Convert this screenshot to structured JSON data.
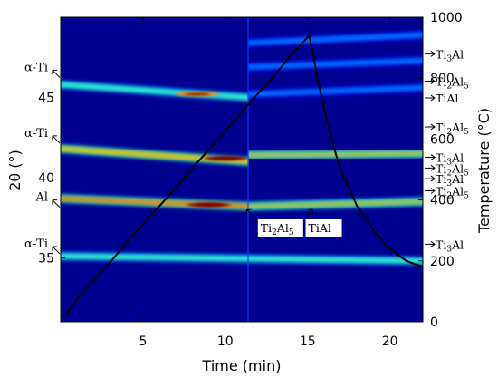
{
  "chart_data": {
    "type": "heatmap",
    "title": "",
    "xlabel": "Time (min)",
    "ylabel_left": "2θ (°)",
    "ylabel_right": "Temperature (°C)",
    "xlim": [
      0,
      22
    ],
    "ylim_left": [
      31.0,
      50.0
    ],
    "ylim_right": [
      0,
      1000
    ],
    "x_ticks": [
      5,
      10,
      15,
      20
    ],
    "y_ticks_left": [
      35,
      40,
      45
    ],
    "y_ticks_right": [
      0,
      200,
      400,
      600,
      800,
      1000
    ],
    "colormap": [
      "#00008f",
      "#0000ff",
      "#0080ff",
      "#00ffff",
      "#80ff80",
      "#ffff00",
      "#ff8000",
      "#ff0000",
      "#800000"
    ],
    "peak_bands": [
      {
        "name": "α-Ti (10-11)",
        "segments": [
          {
            "x0": 0,
            "x1": 11.4,
            "y0": 45.8,
            "y1": 45.0,
            "intensity": 0.55
          }
        ]
      },
      {
        "name": "α-Ti (002)",
        "segments": [
          {
            "x0": 0,
            "x1": 11.4,
            "y0": 41.8,
            "y1": 41.0,
            "intensity": 0.8
          }
        ]
      },
      {
        "name": "Al (111)",
        "segments": [
          {
            "x0": 0,
            "x1": 11.4,
            "y0": 38.7,
            "y1": 38.2,
            "intensity": 0.85
          }
        ]
      },
      {
        "name": "α-Ti (100)",
        "segments": [
          {
            "x0": 0,
            "x1": 22,
            "y0": 35.1,
            "y1": 34.8,
            "intensity": 0.5
          }
        ]
      },
      {
        "name": "Ti3Al (top)",
        "segments": [
          {
            "x0": 11.4,
            "x1": 22,
            "y0": 48.4,
            "y1": 48.9,
            "intensity": 0.3
          }
        ]
      },
      {
        "name": "Ti2Al5 (upper)",
        "segments": [
          {
            "x0": 11.4,
            "x1": 22,
            "y0": 46.9,
            "y1": 47.3,
            "intensity": 0.3
          }
        ]
      },
      {
        "name": "TiAl (upper)",
        "segments": [
          {
            "x0": 11.4,
            "x1": 22,
            "y0": 45.2,
            "y1": 45.6,
            "intensity": 0.25
          }
        ]
      },
      {
        "name": "Ti3Al / Ti2Al5 (mid)",
        "segments": [
          {
            "x0": 11.4,
            "x1": 22,
            "y0": 41.4,
            "y1": 41.5,
            "intensity": 0.7
          }
        ]
      },
      {
        "name": "Ti3Al / Ti2Al5 (low)",
        "segments": [
          {
            "x0": 11.4,
            "x1": 22,
            "y0": 38.2,
            "y1": 38.5,
            "intensity": 0.7
          }
        ]
      }
    ],
    "hot_spots": [
      {
        "x": 8.3,
        "y": 45.2,
        "intensity": 0.75
      },
      {
        "x": 10.0,
        "y": 41.2,
        "intensity": 1.0
      },
      {
        "x": 9.0,
        "y": 38.3,
        "intensity": 1.0
      }
    ],
    "temperature_series": {
      "x": [
        0,
        0.3,
        0.6,
        1,
        2,
        3,
        4,
        5,
        6,
        7,
        8,
        9,
        10,
        11,
        12,
        13,
        14,
        15.1,
        15.3,
        15.6,
        16,
        16.5,
        17,
        18,
        19,
        20,
        21,
        22
      ],
      "y": [
        20,
        20,
        45,
        75,
        135,
        195,
        260,
        320,
        380,
        440,
        505,
        565,
        625,
        690,
        750,
        810,
        875,
        940,
        890,
        800,
        700,
        590,
        500,
        380,
        300,
        240,
        200,
        180
      ]
    },
    "left_annotations": [
      {
        "label": "α-Ti",
        "y": 46.3
      },
      {
        "label": "α-Ti",
        "y": 42.2
      },
      {
        "label": "Al",
        "y": 38.2
      },
      {
        "label": "α-Ti",
        "y": 35.3
      }
    ],
    "right_annotations": [
      {
        "base": "Ti",
        "sub": "3",
        "rest": "Al",
        "temp": 880
      },
      {
        "base": "Ti",
        "sub": "2",
        "rest": "Al",
        "sub2": "5",
        "temp": 790
      },
      {
        "base": "TiAl",
        "sub": "",
        "rest": "",
        "temp": 735
      },
      {
        "base": "Ti",
        "sub": "2",
        "rest": "Al",
        "sub2": "5",
        "temp": 640
      },
      {
        "base": "Ti",
        "sub": "3",
        "rest": "Al",
        "temp": 540
      },
      {
        "base": "Ti",
        "sub": "2",
        "rest": "Al",
        "sub2": "5",
        "temp": 505
      },
      {
        "base": "Ti",
        "sub": "3",
        "rest": "Al",
        "temp": 470
      },
      {
        "base": "Ti",
        "sub": "2",
        "rest": "Al",
        "sub2": "5",
        "temp": 430
      },
      {
        "base": "Ti",
        "sub": "3",
        "rest": "Al",
        "temp": 255
      }
    ],
    "inner_labels": [
      {
        "base": "Ti",
        "sub": "2",
        "rest": "Al",
        "sub2": "5",
        "x": 12.2,
        "y": 36.6,
        "arrow_from": [
          11.8,
          37.5
        ],
        "arrow_to": [
          11.3,
          38.0
        ]
      },
      {
        "base": "TiAl",
        "sub": "",
        "rest": "",
        "sub2": "",
        "x": 15.1,
        "y": 36.6,
        "arrow_from": [
          14.9,
          37.5
        ],
        "arrow_to": [
          15.3,
          38.0
        ]
      }
    ]
  }
}
